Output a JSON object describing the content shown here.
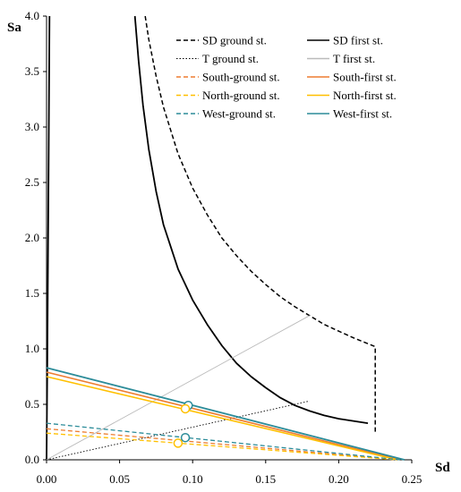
{
  "chart_data": {
    "type": "line",
    "xlabel": "Sd",
    "ylabel": "Sa",
    "xlim": [
      0,
      0.25
    ],
    "ylim": [
      0,
      4.0
    ],
    "x_ticks": [
      "0.00",
      "0.05",
      "0.10",
      "0.15",
      "0.20",
      "0.25"
    ],
    "y_ticks": [
      "0.0",
      "0.5",
      "1.0",
      "1.5",
      "2.0",
      "2.5",
      "3.0",
      "3.5",
      "4.0"
    ],
    "legend_position": "top-right",
    "series": [
      {
        "name": "SD ground st.",
        "color": "#000000",
        "dash": "dashed",
        "width": 1.5,
        "points": [
          [
            0.0675,
            4.0
          ],
          [
            0.07,
            3.79
          ],
          [
            0.075,
            3.46
          ],
          [
            0.08,
            3.18
          ],
          [
            0.09,
            2.76
          ],
          [
            0.1,
            2.45
          ],
          [
            0.11,
            2.21
          ],
          [
            0.12,
            2.0
          ],
          [
            0.13,
            1.84
          ],
          [
            0.14,
            1.7
          ],
          [
            0.15,
            1.58
          ],
          [
            0.16,
            1.47
          ],
          [
            0.17,
            1.38
          ],
          [
            0.18,
            1.3
          ],
          [
            0.19,
            1.22
          ],
          [
            0.2,
            1.16
          ],
          [
            0.21,
            1.1
          ],
          [
            0.225,
            1.02
          ],
          [
            0.225,
            0.24
          ]
        ]
      },
      {
        "name": "SD first st.",
        "color": "#000000",
        "dash": "solid",
        "width": 1.8,
        "points": [
          [
            0.0605,
            4.0
          ],
          [
            0.063,
            3.6
          ],
          [
            0.066,
            3.2
          ],
          [
            0.07,
            2.8
          ],
          [
            0.075,
            2.42
          ],
          [
            0.08,
            2.12
          ],
          [
            0.09,
            1.72
          ],
          [
            0.1,
            1.44
          ],
          [
            0.11,
            1.22
          ],
          [
            0.12,
            1.03
          ],
          [
            0.13,
            0.87
          ],
          [
            0.14,
            0.75
          ],
          [
            0.15,
            0.65
          ],
          [
            0.16,
            0.56
          ],
          [
            0.17,
            0.49
          ],
          [
            0.18,
            0.44
          ],
          [
            0.19,
            0.4
          ],
          [
            0.2,
            0.37
          ],
          [
            0.21,
            0.35
          ],
          [
            0.22,
            0.33
          ]
        ]
      },
      {
        "name": "SD first st. (left branch)",
        "color": "#000000",
        "dash": "solid",
        "width": 1.8,
        "points": [
          [
            0.0,
            0.0
          ],
          [
            0.0005,
            0.8
          ],
          [
            0.001,
            1.8
          ],
          [
            0.0015,
            2.8
          ],
          [
            0.002,
            4.0
          ]
        ]
      },
      {
        "name": "T ground st.",
        "color": "#000000",
        "dash": "dotted",
        "width": 0.9,
        "points": [
          [
            0.0,
            0.0
          ],
          [
            0.18,
            0.53
          ]
        ]
      },
      {
        "name": "T first st.",
        "color": "#bbbbbb",
        "dash": "solid",
        "width": 0.9,
        "points": [
          [
            0.0,
            0.0
          ],
          [
            0.18,
            1.3
          ]
        ]
      },
      {
        "name": "South-ground st.",
        "color": "#ED7D31",
        "dash": "dashed",
        "width": 1.3,
        "points": [
          [
            0.0,
            0.28
          ],
          [
            0.24,
            0.0
          ]
        ]
      },
      {
        "name": "South-first st.",
        "color": "#ED7D31",
        "dash": "solid",
        "width": 1.6,
        "points": [
          [
            0.0,
            0.79
          ],
          [
            0.242,
            0.0
          ]
        ]
      },
      {
        "name": "North-ground st.",
        "color": "#FFC000",
        "dash": "dashed",
        "width": 1.3,
        "points": [
          [
            0.0,
            0.24
          ],
          [
            0.24,
            0.0
          ]
        ]
      },
      {
        "name": "North-first st.",
        "color": "#FFC000",
        "dash": "solid",
        "width": 1.6,
        "points": [
          [
            0.0,
            0.75
          ],
          [
            0.24,
            0.0
          ]
        ]
      },
      {
        "name": "West-ground st.",
        "color": "#2C8C99",
        "dash": "dashed",
        "width": 1.3,
        "points": [
          [
            0.0,
            0.33
          ],
          [
            0.242,
            0.0
          ]
        ]
      },
      {
        "name": "West-first st.",
        "color": "#2C8C99",
        "dash": "solid",
        "width": 1.8,
        "points": [
          [
            0.0,
            0.83
          ],
          [
            0.245,
            0.0
          ]
        ]
      }
    ],
    "markers": [
      {
        "x": 0.097,
        "y": 0.49,
        "color": "#2C8C99"
      },
      {
        "x": 0.095,
        "y": 0.46,
        "color": "#FFC000"
      },
      {
        "x": 0.095,
        "y": 0.2,
        "color": "#2C8C99"
      },
      {
        "x": 0.09,
        "y": 0.15,
        "color": "#FFC000"
      }
    ],
    "legend": [
      {
        "label": "SD ground st.",
        "color": "#000000",
        "dash": "dashed"
      },
      {
        "label": "SD first st.",
        "color": "#000000",
        "dash": "solid"
      },
      {
        "label": "T ground st.",
        "color": "#000000",
        "dash": "dotted"
      },
      {
        "label": "T first st.",
        "color": "#bbbbbb",
        "dash": "solid"
      },
      {
        "label": "South-ground st.",
        "color": "#ED7D31",
        "dash": "dashed"
      },
      {
        "label": "South-first st.",
        "color": "#ED7D31",
        "dash": "solid"
      },
      {
        "label": "North-ground st.",
        "color": "#FFC000",
        "dash": "dashed"
      },
      {
        "label": "North-first st.",
        "color": "#FFC000",
        "dash": "solid"
      },
      {
        "label": "West-ground st.",
        "color": "#2C8C99",
        "dash": "dashed"
      },
      {
        "label": "West-first st.",
        "color": "#2C8C99",
        "dash": "solid"
      }
    ]
  }
}
